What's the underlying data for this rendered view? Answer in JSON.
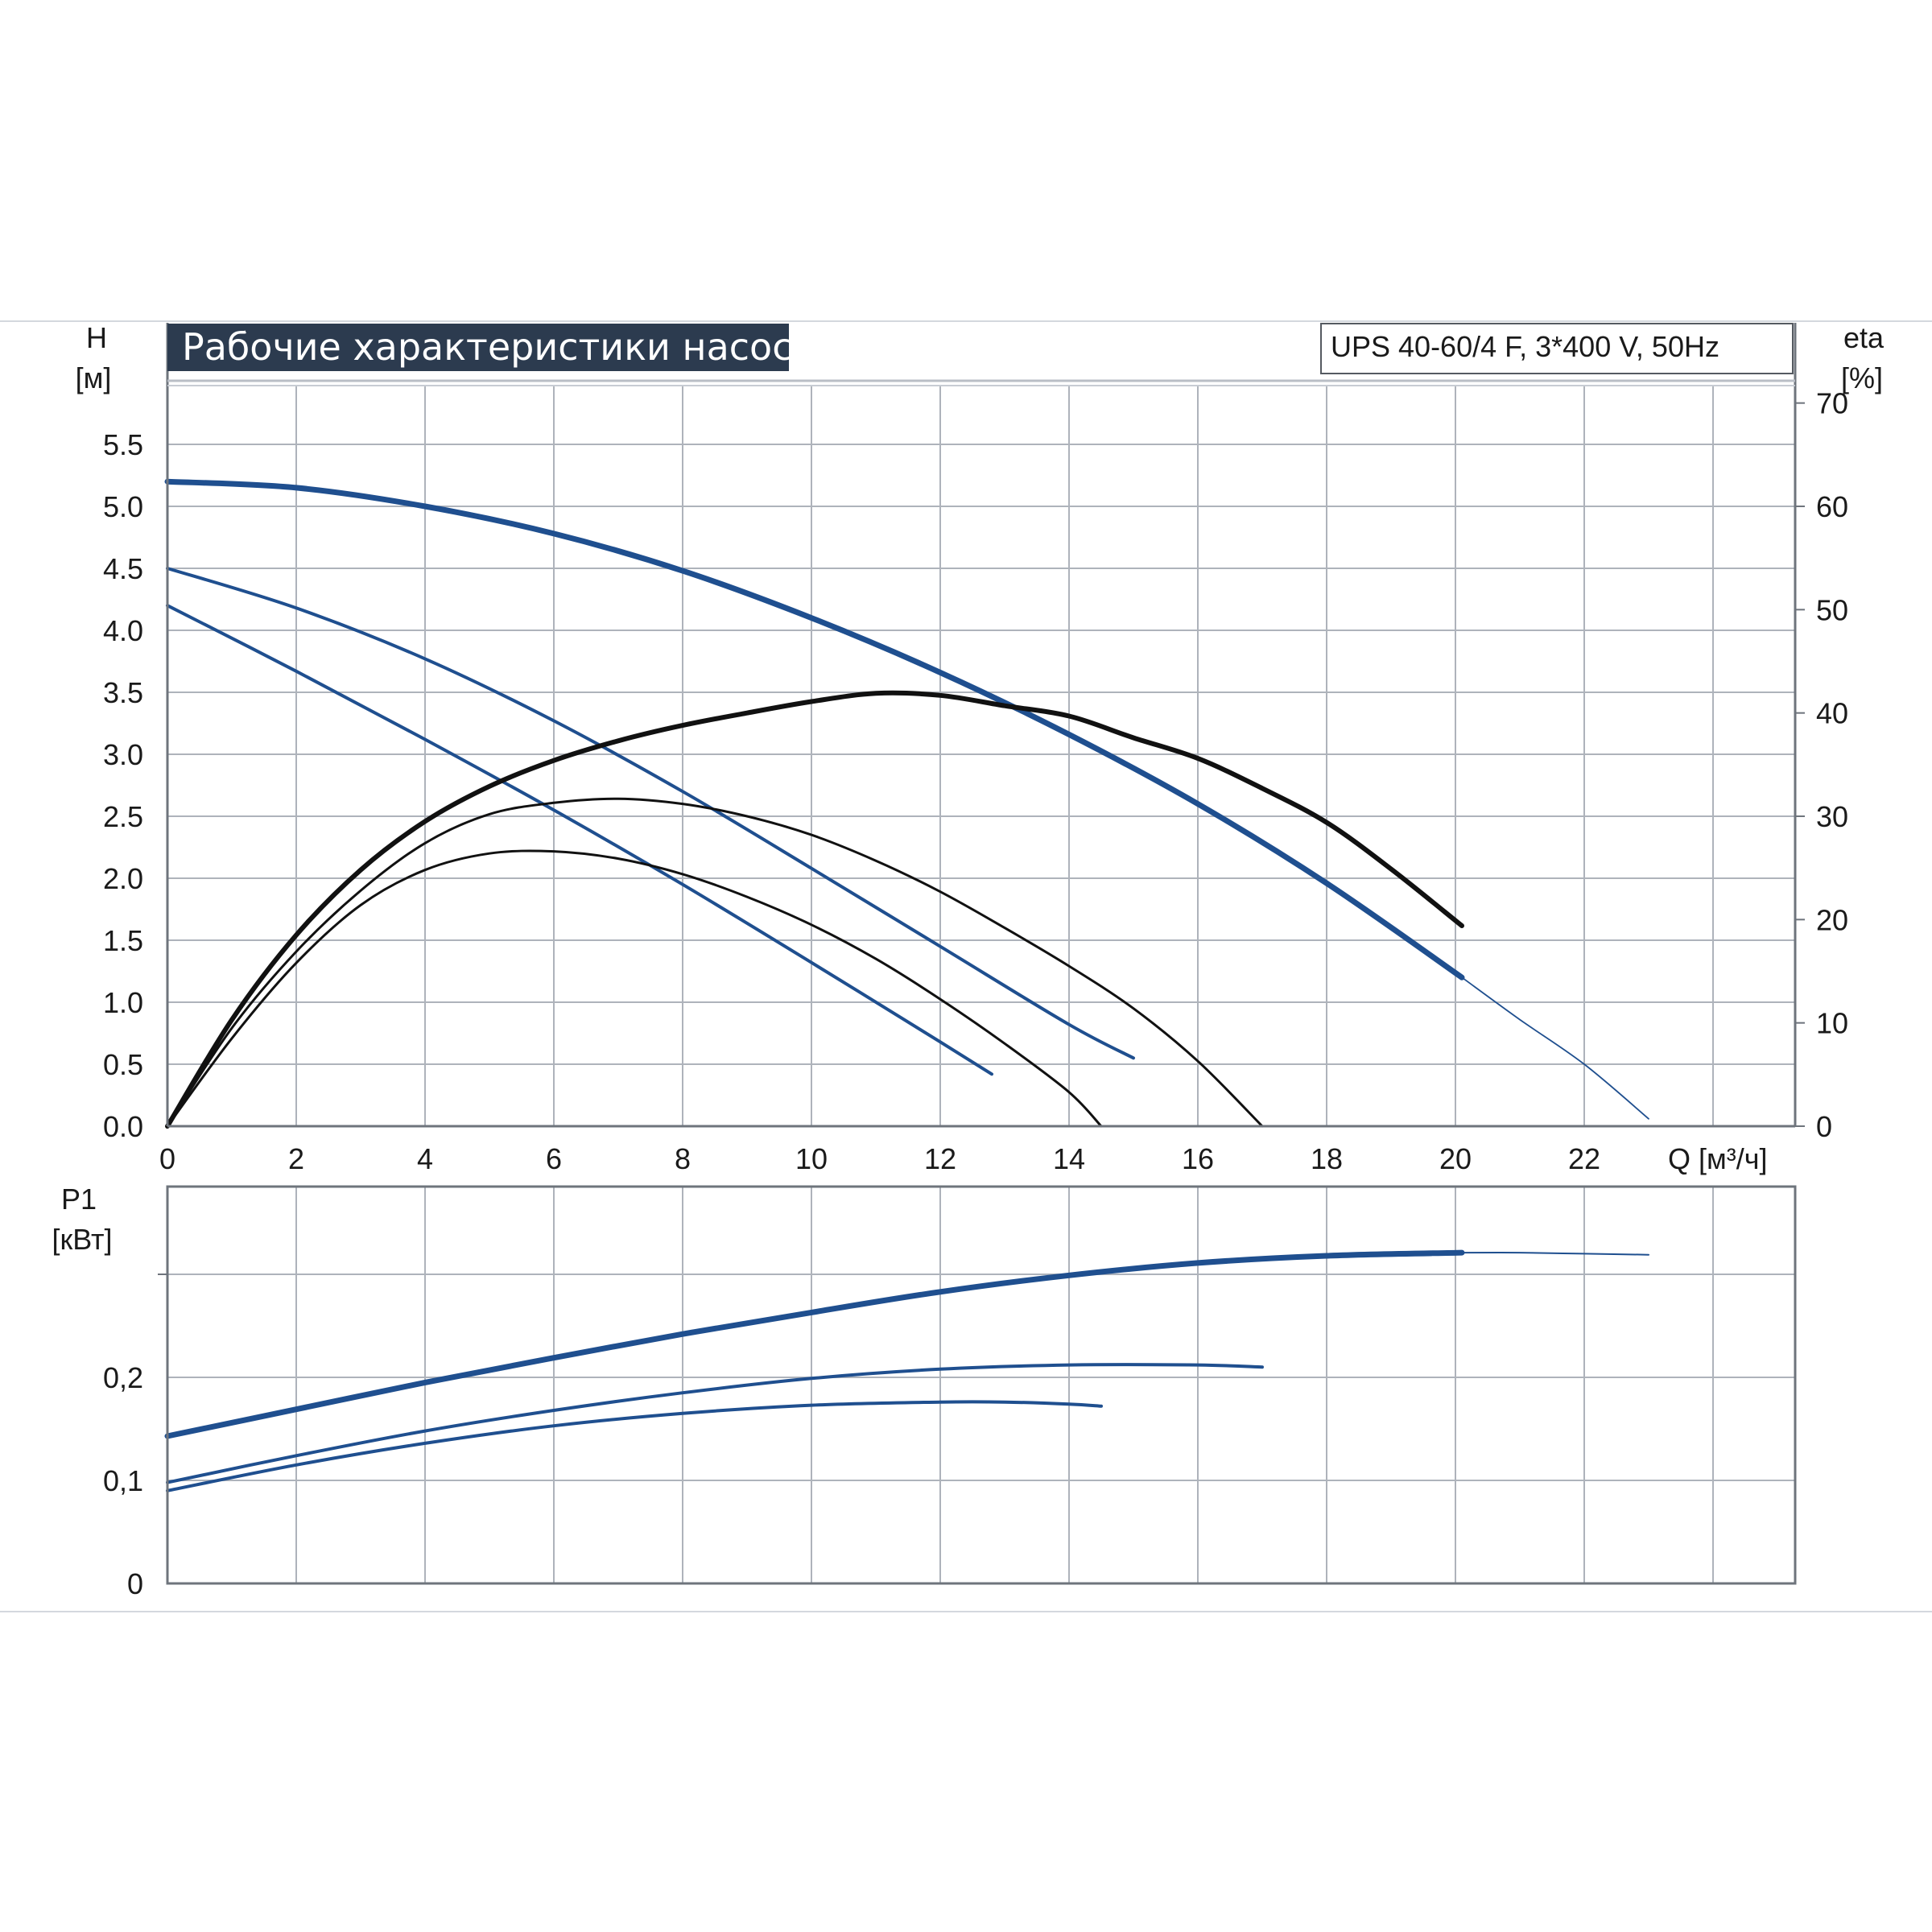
{
  "title": "Рабочие характеристики насоса",
  "model": "UPS 40-60/4 F, 3*400 V, 50Hz",
  "colors": {
    "blue": "#1f4f8f",
    "black": "#111111",
    "grid": "#aeb3bb",
    "title_bg": "#2c3b4f"
  },
  "chart_data": [
    {
      "type": "line",
      "panel": "head-efficiency",
      "title": "Рабочие характеристики насоса",
      "xlabel": "Q [м³/ч]",
      "ylabel": "H",
      "ylabel_unit": "[м]",
      "y2label": "eta",
      "y2label_unit": "[%]",
      "xlim": [
        0,
        25
      ],
      "ylim": [
        0,
        6
      ],
      "y2lim": [
        0,
        72
      ],
      "x_ticks": [
        "0",
        "2",
        "4",
        "6",
        "8",
        "10",
        "12",
        "14",
        "16",
        "18",
        "20",
        "22"
      ],
      "y_ticks": [
        "0.0",
        "0.5",
        "1.0",
        "1.5",
        "2.0",
        "2.5",
        "3.0",
        "3.5",
        "4.0",
        "4.5",
        "5.0",
        "5.5"
      ],
      "y2_ticks": [
        "0",
        "10",
        "20",
        "30",
        "40",
        "50",
        "60",
        "70"
      ],
      "grid": true,
      "series": [
        {
          "kind": "head",
          "color": "#1f4f8f",
          "width": 7,
          "x": [
            0,
            2,
            4,
            6,
            8,
            10,
            12,
            14,
            16,
            18,
            20.1
          ],
          "y": [
            5.2,
            5.15,
            5.0,
            4.78,
            4.48,
            4.1,
            3.66,
            3.16,
            2.6,
            1.96,
            1.2
          ]
        },
        {
          "kind": "head",
          "color": "#1f4f8f",
          "width": 1.8,
          "x": [
            20.1,
            21,
            22,
            23
          ],
          "y": [
            1.2,
            0.86,
            0.5,
            0.06
          ]
        },
        {
          "kind": "head",
          "color": "#1f4f8f",
          "width": 4,
          "x": [
            0,
            2,
            4,
            6,
            8,
            10,
            12,
            14,
            15
          ],
          "y": [
            4.5,
            4.18,
            3.77,
            3.27,
            2.7,
            2.08,
            1.45,
            0.82,
            0.55
          ]
        },
        {
          "kind": "head",
          "color": "#1f4f8f",
          "width": 4,
          "x": [
            0,
            2,
            4,
            6,
            8,
            10,
            12,
            12.8
          ],
          "y": [
            4.2,
            3.67,
            3.12,
            2.55,
            1.95,
            1.32,
            0.68,
            0.42
          ]
        },
        {
          "kind": "efficiency",
          "color": "#111111",
          "width": 6,
          "x": [
            0,
            1,
            2,
            3,
            4,
            5,
            6,
            7,
            8,
            9,
            10,
            11,
            12,
            13,
            14,
            15,
            16,
            17,
            18,
            19,
            20.1
          ],
          "y": [
            0,
            10.3,
            18.5,
            24.8,
            29.5,
            32.9,
            35.4,
            37.3,
            38.8,
            40.0,
            41.1,
            41.9,
            41.7,
            40.7,
            39.7,
            37.6,
            35.6,
            32.7,
            29.4,
            24.9,
            19.4
          ]
        },
        {
          "kind": "efficiency",
          "color": "#111111",
          "width": 3,
          "x": [
            0,
            1,
            2,
            3,
            4,
            5,
            6,
            7,
            8,
            9,
            10,
            11,
            12,
            13,
            14,
            15,
            16,
            17
          ],
          "y": [
            0,
            9.5,
            16.9,
            22.8,
            27.4,
            30.2,
            31.3,
            31.7,
            31.2,
            30.0,
            28.2,
            25.7,
            22.7,
            19.2,
            15.5,
            11.4,
            6.3,
            0
          ]
        },
        {
          "kind": "efficiency",
          "color": "#111111",
          "width": 3,
          "x": [
            0,
            1,
            2,
            3,
            4,
            5,
            6,
            7,
            8,
            9,
            10,
            11,
            12,
            13,
            14,
            14.5
          ],
          "y": [
            0,
            8.5,
            15.8,
            21.4,
            24.8,
            26.4,
            26.6,
            25.9,
            24.4,
            22.2,
            19.5,
            16.2,
            12.3,
            8.0,
            3.3,
            0
          ]
        }
      ]
    },
    {
      "type": "line",
      "panel": "power",
      "ylabel": "P1",
      "ylabel_unit": "[кВт]",
      "xlim": [
        0,
        25
      ],
      "ylim": [
        0,
        0.34
      ],
      "y_ticks": [
        "0",
        "0,1",
        "0,2"
      ],
      "grid": true,
      "series": [
        {
          "kind": "power",
          "color": "#1f4f8f",
          "width": 7,
          "x": [
            0,
            2,
            4,
            6,
            8,
            10,
            12,
            14,
            16,
            18,
            20.1
          ],
          "y": [
            0.143,
            0.169,
            0.195,
            0.219,
            0.242,
            0.263,
            0.283,
            0.299,
            0.311,
            0.318,
            0.321
          ]
        },
        {
          "kind": "power",
          "color": "#1f4f8f",
          "width": 2,
          "x": [
            20.1,
            21,
            22,
            23
          ],
          "y": [
            0.321,
            0.321,
            0.32,
            0.319
          ]
        },
        {
          "kind": "power",
          "color": "#1f4f8f",
          "width": 4,
          "x": [
            0,
            2,
            4,
            6,
            8,
            10,
            12,
            14,
            16,
            17
          ],
          "y": [
            0.098,
            0.124,
            0.148,
            0.168,
            0.185,
            0.199,
            0.208,
            0.212,
            0.212,
            0.21
          ]
        },
        {
          "kind": "power",
          "color": "#1f4f8f",
          "width": 4,
          "x": [
            0,
            2,
            4,
            6,
            8,
            10,
            12,
            13,
            14,
            14.5
          ],
          "y": [
            0.09,
            0.115,
            0.136,
            0.153,
            0.165,
            0.173,
            0.176,
            0.176,
            0.174,
            0.172
          ]
        }
      ]
    }
  ]
}
